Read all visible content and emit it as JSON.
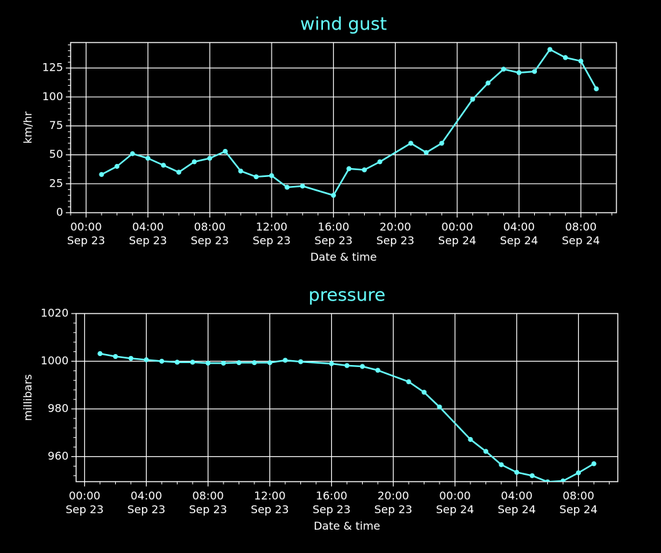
{
  "colors": {
    "background": "#000000",
    "series": "#66ffff",
    "grid": "#ffffff",
    "text": "#ffffff",
    "title": "#66ffff"
  },
  "chart_data": [
    {
      "type": "line",
      "title": "wind gust",
      "xlabel": "Date & time",
      "ylabel": "km/hr",
      "ylim": [
        0,
        147
      ],
      "yticks": [
        "0",
        "25",
        "50",
        "75",
        "100",
        "125"
      ],
      "xticks": [
        [
          "00:00",
          "Sep 23"
        ],
        [
          "04:00",
          "Sep 23"
        ],
        [
          "08:00",
          "Sep 23"
        ],
        [
          "12:00",
          "Sep 23"
        ],
        [
          "16:00",
          "Sep 23"
        ],
        [
          "20:00",
          "Sep 23"
        ],
        [
          "00:00",
          "Sep 24"
        ],
        [
          "04:00",
          "Sep 24"
        ],
        [
          "08:00",
          "Sep 24"
        ]
      ],
      "grid": true,
      "x": [
        "Sep 23 01:00",
        "Sep 23 02:00",
        "Sep 23 03:00",
        "Sep 23 04:00",
        "Sep 23 05:00",
        "Sep 23 06:00",
        "Sep 23 07:00",
        "Sep 23 08:00",
        "Sep 23 09:00",
        "Sep 23 10:00",
        "Sep 23 11:00",
        "Sep 23 12:00",
        "Sep 23 13:00",
        "Sep 23 14:00",
        "Sep 23 16:00",
        "Sep 23 17:00",
        "Sep 23 18:00",
        "Sep 23 19:00",
        "Sep 23 21:00",
        "Sep 23 22:00",
        "Sep 23 23:00",
        "Sep 24 01:00",
        "Sep 24 02:00",
        "Sep 24 03:00",
        "Sep 24 04:00",
        "Sep 24 05:00",
        "Sep 24 06:00",
        "Sep 24 07:00",
        "Sep 24 08:00",
        "Sep 24 09:00"
      ],
      "values": [
        33,
        40,
        51,
        47,
        41,
        35,
        44,
        47,
        53,
        36,
        31,
        32,
        22,
        23,
        15,
        38,
        37,
        44,
        60,
        52,
        60,
        98,
        112,
        124,
        121,
        122,
        141,
        134,
        131,
        107
      ]
    },
    {
      "type": "line",
      "title": "pressure",
      "xlabel": "Date & time",
      "ylabel": "millibars",
      "ylim": [
        949.5,
        1020
      ],
      "yticks": [
        "960",
        "980",
        "1000",
        "1020"
      ],
      "xticks": [
        [
          "00:00",
          "Sep 23"
        ],
        [
          "04:00",
          "Sep 23"
        ],
        [
          "08:00",
          "Sep 23"
        ],
        [
          "12:00",
          "Sep 23"
        ],
        [
          "16:00",
          "Sep 23"
        ],
        [
          "20:00",
          "Sep 23"
        ],
        [
          "00:00",
          "Sep 24"
        ],
        [
          "04:00",
          "Sep 24"
        ],
        [
          "08:00",
          "Sep 24"
        ]
      ],
      "grid": true,
      "x": [
        "Sep 23 01:00",
        "Sep 23 02:00",
        "Sep 23 03:00",
        "Sep 23 04:00",
        "Sep 23 05:00",
        "Sep 23 06:00",
        "Sep 23 07:00",
        "Sep 23 08:00",
        "Sep 23 09:00",
        "Sep 23 10:00",
        "Sep 23 11:00",
        "Sep 23 12:00",
        "Sep 23 13:00",
        "Sep 23 14:00",
        "Sep 23 16:00",
        "Sep 23 17:00",
        "Sep 23 18:00",
        "Sep 23 19:00",
        "Sep 23 21:00",
        "Sep 23 22:00",
        "Sep 23 23:00",
        "Sep 24 01:00",
        "Sep 24 02:00",
        "Sep 24 03:00",
        "Sep 24 04:00",
        "Sep 24 05:00",
        "Sep 24 06:00",
        "Sep 24 07:00",
        "Sep 24 08:00",
        "Sep 24 09:00"
      ],
      "values": [
        1003.2,
        1002.0,
        1001.2,
        1000.6,
        1000.0,
        999.6,
        999.6,
        999.2,
        999.2,
        999.4,
        999.4,
        999.4,
        1000.4,
        999.8,
        999.0,
        998.2,
        997.8,
        996.2,
        991.4,
        987.0,
        980.8,
        967.2,
        962.2,
        956.6,
        953.4,
        952.0,
        949.4,
        949.8,
        953.2,
        957.0
      ]
    }
  ]
}
